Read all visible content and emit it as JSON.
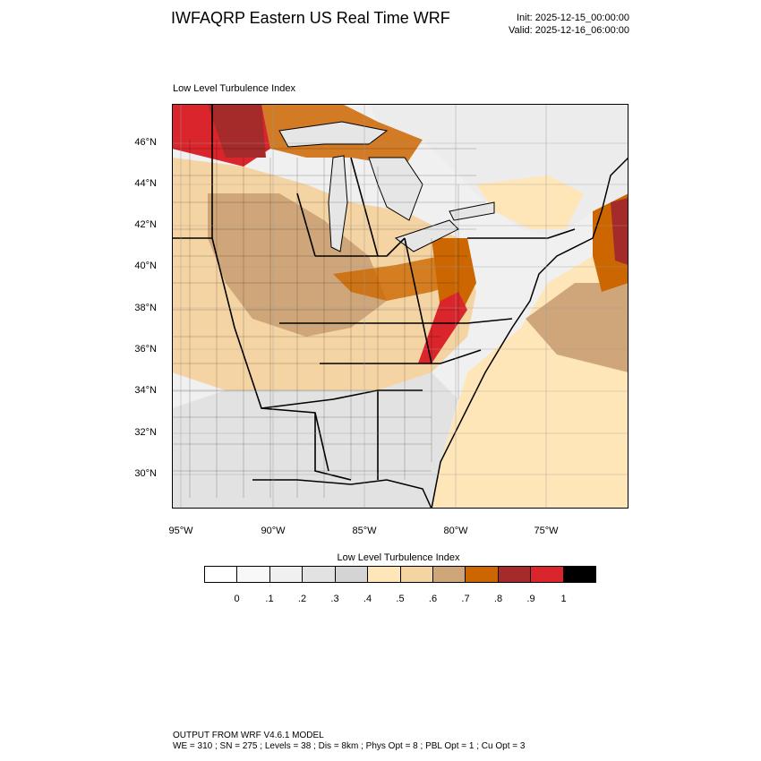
{
  "header": {
    "title": "IWFAQRP Eastern US Real Time WRF",
    "init": "Init: 2025-12-15_00:00:00",
    "valid": "Valid: 2025-12-16_06:00:00"
  },
  "plot": {
    "label": "Low Level Turbulence Index",
    "lat_labels": [
      "46°N",
      "44°N",
      "42°N",
      "40°N",
      "38°N",
      "36°N",
      "34°N",
      "32°N",
      "30°N"
    ],
    "lon_labels": [
      "95°W",
      "90°W",
      "85°W",
      "80°W",
      "75°W"
    ]
  },
  "colorbar": {
    "title": "Low Level Turbulence Index",
    "colors": [
      "#ffffff",
      "#f8f8f8",
      "#f0f0f0",
      "#e2e2e2",
      "#d4d4d4",
      "#ffe6b8",
      "#f5d4a4",
      "#cfa67a",
      "#cc6600",
      "#a52a2a",
      "#d9252b",
      "#000000"
    ],
    "ticks": [
      "0",
      ".1",
      ".2",
      ".3",
      ".4",
      ".5",
      ".6",
      ".7",
      ".8",
      ".9",
      "1"
    ]
  },
  "footer": {
    "line1": "OUTPUT FROM WRF V4.6.1 MODEL",
    "line2": "WE = 310 ; SN = 275 ; Levels = 38 ; Dis = 8km ; Phys Opt = 8 ; PBL Opt = 1 ; Cu Opt = 3"
  }
}
